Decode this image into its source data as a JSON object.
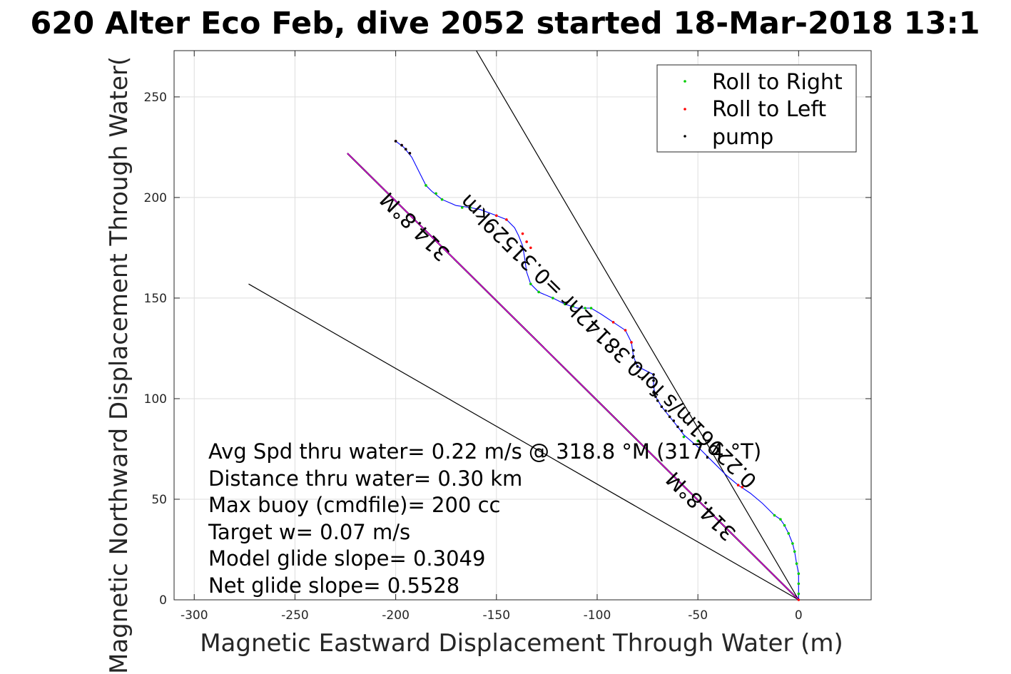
{
  "chart_data": {
    "type": "scatter",
    "title": "620 Alter Eco Feb, dive 2052 started 18-Mar-2018 13:1",
    "xlabel": "Magnetic Eastward Displacement Through Water (m)",
    "ylabel": "Magnetic Northward Displacement Through Water(",
    "xlim": [
      -310,
      36
    ],
    "ylim": [
      0,
      273
    ],
    "xticks": [
      -300,
      -250,
      -200,
      -150,
      -100,
      -50,
      0
    ],
    "yticks": [
      0,
      50,
      100,
      150,
      200,
      250
    ],
    "grid": true,
    "legend_position": "top-right",
    "colors": {
      "track": "#0000ff",
      "roll_right": "#00cc00",
      "roll_left": "#ff0000",
      "pump": "#000000",
      "heading_line": "#ff00ff",
      "guide": "#000000"
    },
    "series": [
      {
        "name": "Roll to Right",
        "color": "#00cc00",
        "points": [
          [
            0,
            3
          ],
          [
            0,
            8
          ],
          [
            0,
            13
          ],
          [
            -1,
            18
          ],
          [
            -2,
            24
          ],
          [
            -3,
            28
          ],
          [
            -5,
            33
          ],
          [
            -7,
            37
          ],
          [
            -9,
            40
          ],
          [
            -12,
            42
          ],
          [
            -163,
            195
          ],
          [
            -167,
            195
          ],
          [
            -177,
            199
          ],
          [
            -180,
            202
          ],
          [
            -185,
            206
          ],
          [
            -103,
            145
          ],
          [
            -106,
            145
          ],
          [
            -112,
            146
          ],
          [
            -116,
            147
          ],
          [
            -122,
            150
          ],
          [
            -129,
            153
          ],
          [
            -133,
            157
          ],
          [
            -57,
            81
          ],
          [
            -50,
            79
          ]
        ]
      },
      {
        "name": "Roll to Left",
        "color": "#ff0000",
        "points": [
          [
            0,
            0
          ],
          [
            -28,
            56
          ],
          [
            -30,
            57
          ],
          [
            -150,
            191
          ],
          [
            -145,
            189
          ],
          [
            -137,
            182
          ],
          [
            -135,
            178
          ],
          [
            -133,
            175
          ],
          [
            -92,
            138
          ],
          [
            -86,
            134
          ],
          [
            -83,
            128
          ],
          [
            -193,
            222
          ],
          [
            -195,
            224
          ],
          [
            -197,
            226
          ],
          [
            -200,
            228
          ]
        ]
      },
      {
        "name": "pump",
        "color": "#000000",
        "points": [
          [
            -82,
            124
          ],
          [
            -82,
            121
          ],
          [
            -81,
            118
          ],
          [
            -80,
            116
          ],
          [
            -72,
            112
          ],
          [
            -72,
            109
          ],
          [
            -72,
            106
          ],
          [
            -72,
            103
          ],
          [
            -71,
            101
          ],
          [
            -70,
            99
          ],
          [
            -68,
            96
          ],
          [
            -66,
            94
          ],
          [
            -64,
            91
          ],
          [
            -62,
            89
          ],
          [
            -60,
            86
          ],
          [
            -58,
            84
          ],
          [
            -200,
            228
          ],
          [
            -197,
            226
          ],
          [
            -195,
            224
          ],
          [
            -193,
            222
          ]
        ]
      }
    ],
    "track": [
      [
        0,
        0
      ],
      [
        0,
        3
      ],
      [
        0,
        8
      ],
      [
        0,
        13
      ],
      [
        -1,
        18
      ],
      [
        -2,
        24
      ],
      [
        -3,
        28
      ],
      [
        -5,
        33
      ],
      [
        -7,
        37
      ],
      [
        -9,
        40
      ],
      [
        -12,
        42
      ],
      [
        -18,
        48
      ],
      [
        -24,
        53
      ],
      [
        -30,
        57
      ],
      [
        -36,
        62
      ],
      [
        -42,
        68
      ],
      [
        -50,
        76
      ],
      [
        -57,
        82
      ],
      [
        -60,
        86
      ],
      [
        -64,
        91
      ],
      [
        -68,
        96
      ],
      [
        -71,
        101
      ],
      [
        -72,
        106
      ],
      [
        -72,
        112
      ],
      [
        -80,
        116
      ],
      [
        -82,
        121
      ],
      [
        -83,
        128
      ],
      [
        -86,
        134
      ],
      [
        -92,
        138
      ],
      [
        -98,
        142
      ],
      [
        -103,
        145
      ],
      [
        -110,
        145
      ],
      [
        -116,
        147
      ],
      [
        -122,
        150
      ],
      [
        -129,
        153
      ],
      [
        -133,
        157
      ],
      [
        -135,
        163
      ],
      [
        -136,
        170
      ],
      [
        -137,
        176
      ],
      [
        -139,
        181
      ],
      [
        -141,
        185
      ],
      [
        -145,
        189
      ],
      [
        -150,
        191
      ],
      [
        -158,
        194
      ],
      [
        -163,
        195
      ],
      [
        -170,
        196
      ],
      [
        -177,
        199
      ],
      [
        -182,
        203
      ],
      [
        -185,
        206
      ],
      [
        -188,
        212
      ],
      [
        -192,
        220
      ],
      [
        -196,
        225
      ],
      [
        -200,
        228
      ]
    ],
    "heading_line": [
      [
        0,
        0
      ],
      [
        -224,
        222
      ]
    ],
    "guide_lines": [
      [
        [
          0,
          0
        ],
        [
          -273,
          157
        ]
      ],
      [
        [
          0,
          0
        ],
        [
          -160,
          273
        ]
      ]
    ],
    "legend": [
      "Roll to Right",
      "Roll to Left",
      "pump"
    ],
    "line_labels": [
      "314.8°M",
      "0.22961m/s for0.38142hr =0.31529km",
      "314.8°M"
    ],
    "annotations": [
      "Avg Spd thru water=  0.22 m/s @ 318.8 °M (317.4 °T)",
      "Distance thru water=  0.30 km",
      "Max buoy (cmdfile)= 200 cc",
      "Target w= 0.07 m/s",
      "Model glide slope= 0.3049",
      "Net glide slope= 0.5528"
    ]
  }
}
